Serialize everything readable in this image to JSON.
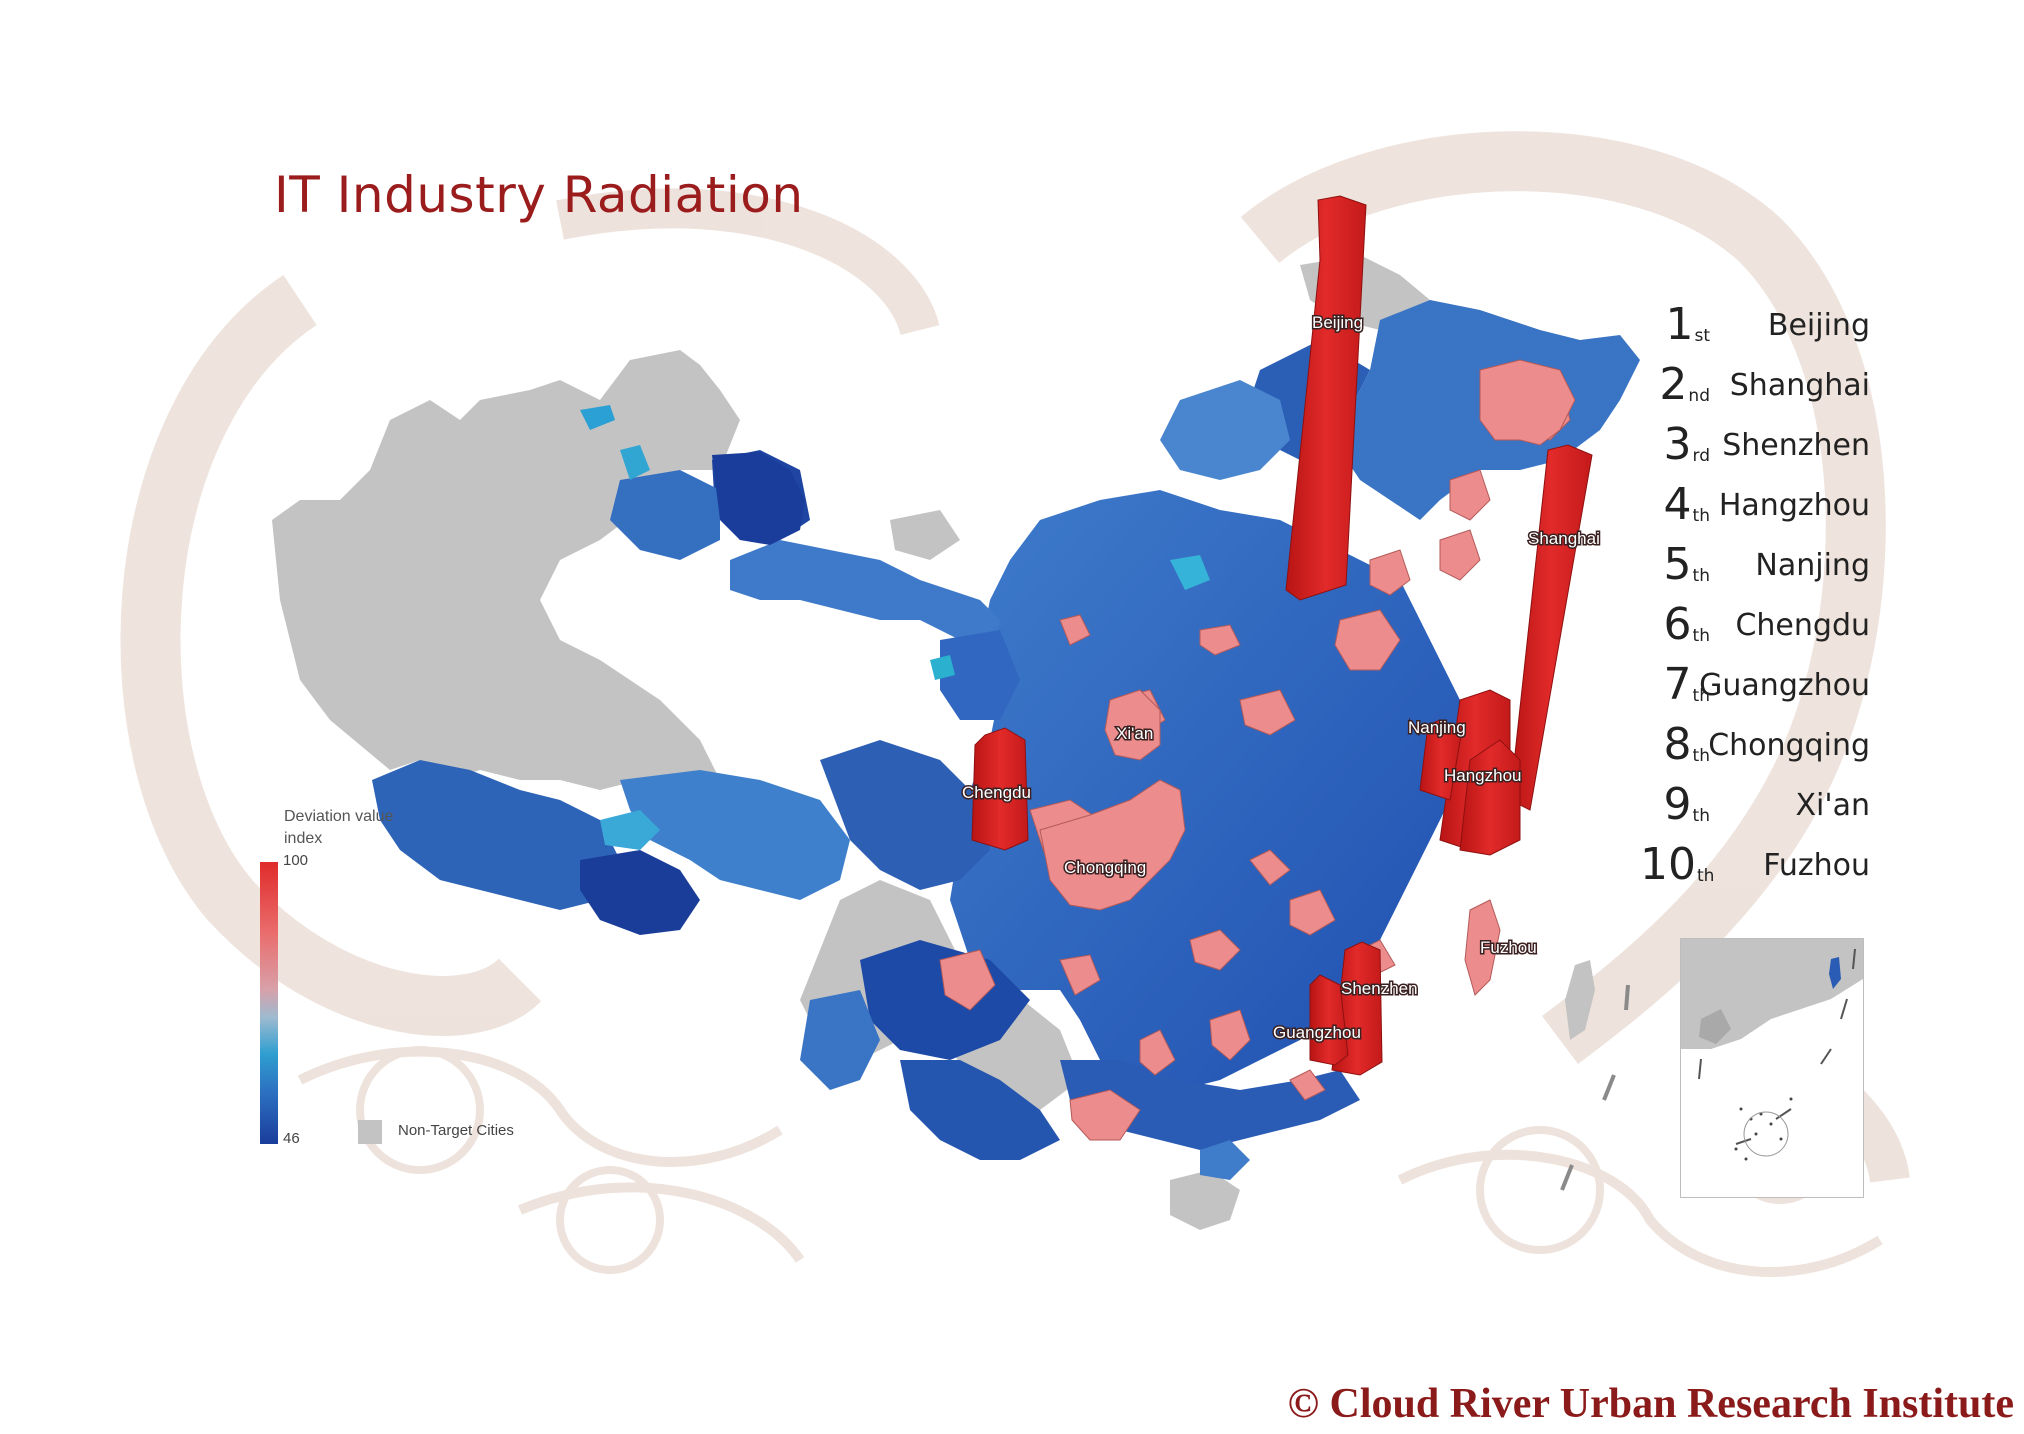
{
  "title": "IT Industry Radiation",
  "copyright": "© Cloud River Urban Research Institute",
  "legend": {
    "title": "Deviation value index",
    "max": "100",
    "min": "46",
    "non_target_label": "Non-Target Cities",
    "colors": {
      "high": "#e02b2b",
      "mid": "#d8a0a8",
      "low": "#1a3d9b",
      "non_target": "#c3c3c3"
    }
  },
  "ranking": [
    {
      "num": "1",
      "suffix": "st",
      "city": "Beijing"
    },
    {
      "num": "2",
      "suffix": "nd",
      "city": "Shanghai"
    },
    {
      "num": "3",
      "suffix": "rd",
      "city": "Shenzhen"
    },
    {
      "num": "4",
      "suffix": "th",
      "city": "Hangzhou"
    },
    {
      "num": "5",
      "suffix": "th",
      "city": "Nanjing"
    },
    {
      "num": "6",
      "suffix": "th",
      "city": "Chengdu"
    },
    {
      "num": "7",
      "suffix": "th",
      "city": "Guangzhou"
    },
    {
      "num": "8",
      "suffix": "th",
      "city": "Chongqing"
    },
    {
      "num": "9",
      "suffix": "th",
      "city": "Xi'an"
    },
    {
      "num": "10",
      "suffix": "th",
      "city": "Fuzhou"
    }
  ],
  "map_labels": {
    "beijing": "Beijing",
    "shanghai": "Shanghai",
    "nanjing": "Nanjing",
    "hangzhou": "Hangzhou",
    "xian": "Xi'an",
    "chengdu": "Chengdu",
    "chongqing": "Chongqing",
    "fuzhou": "Fuzhou",
    "shenzhen": "Shenzhen",
    "guangzhou": "Guangzhou"
  }
}
